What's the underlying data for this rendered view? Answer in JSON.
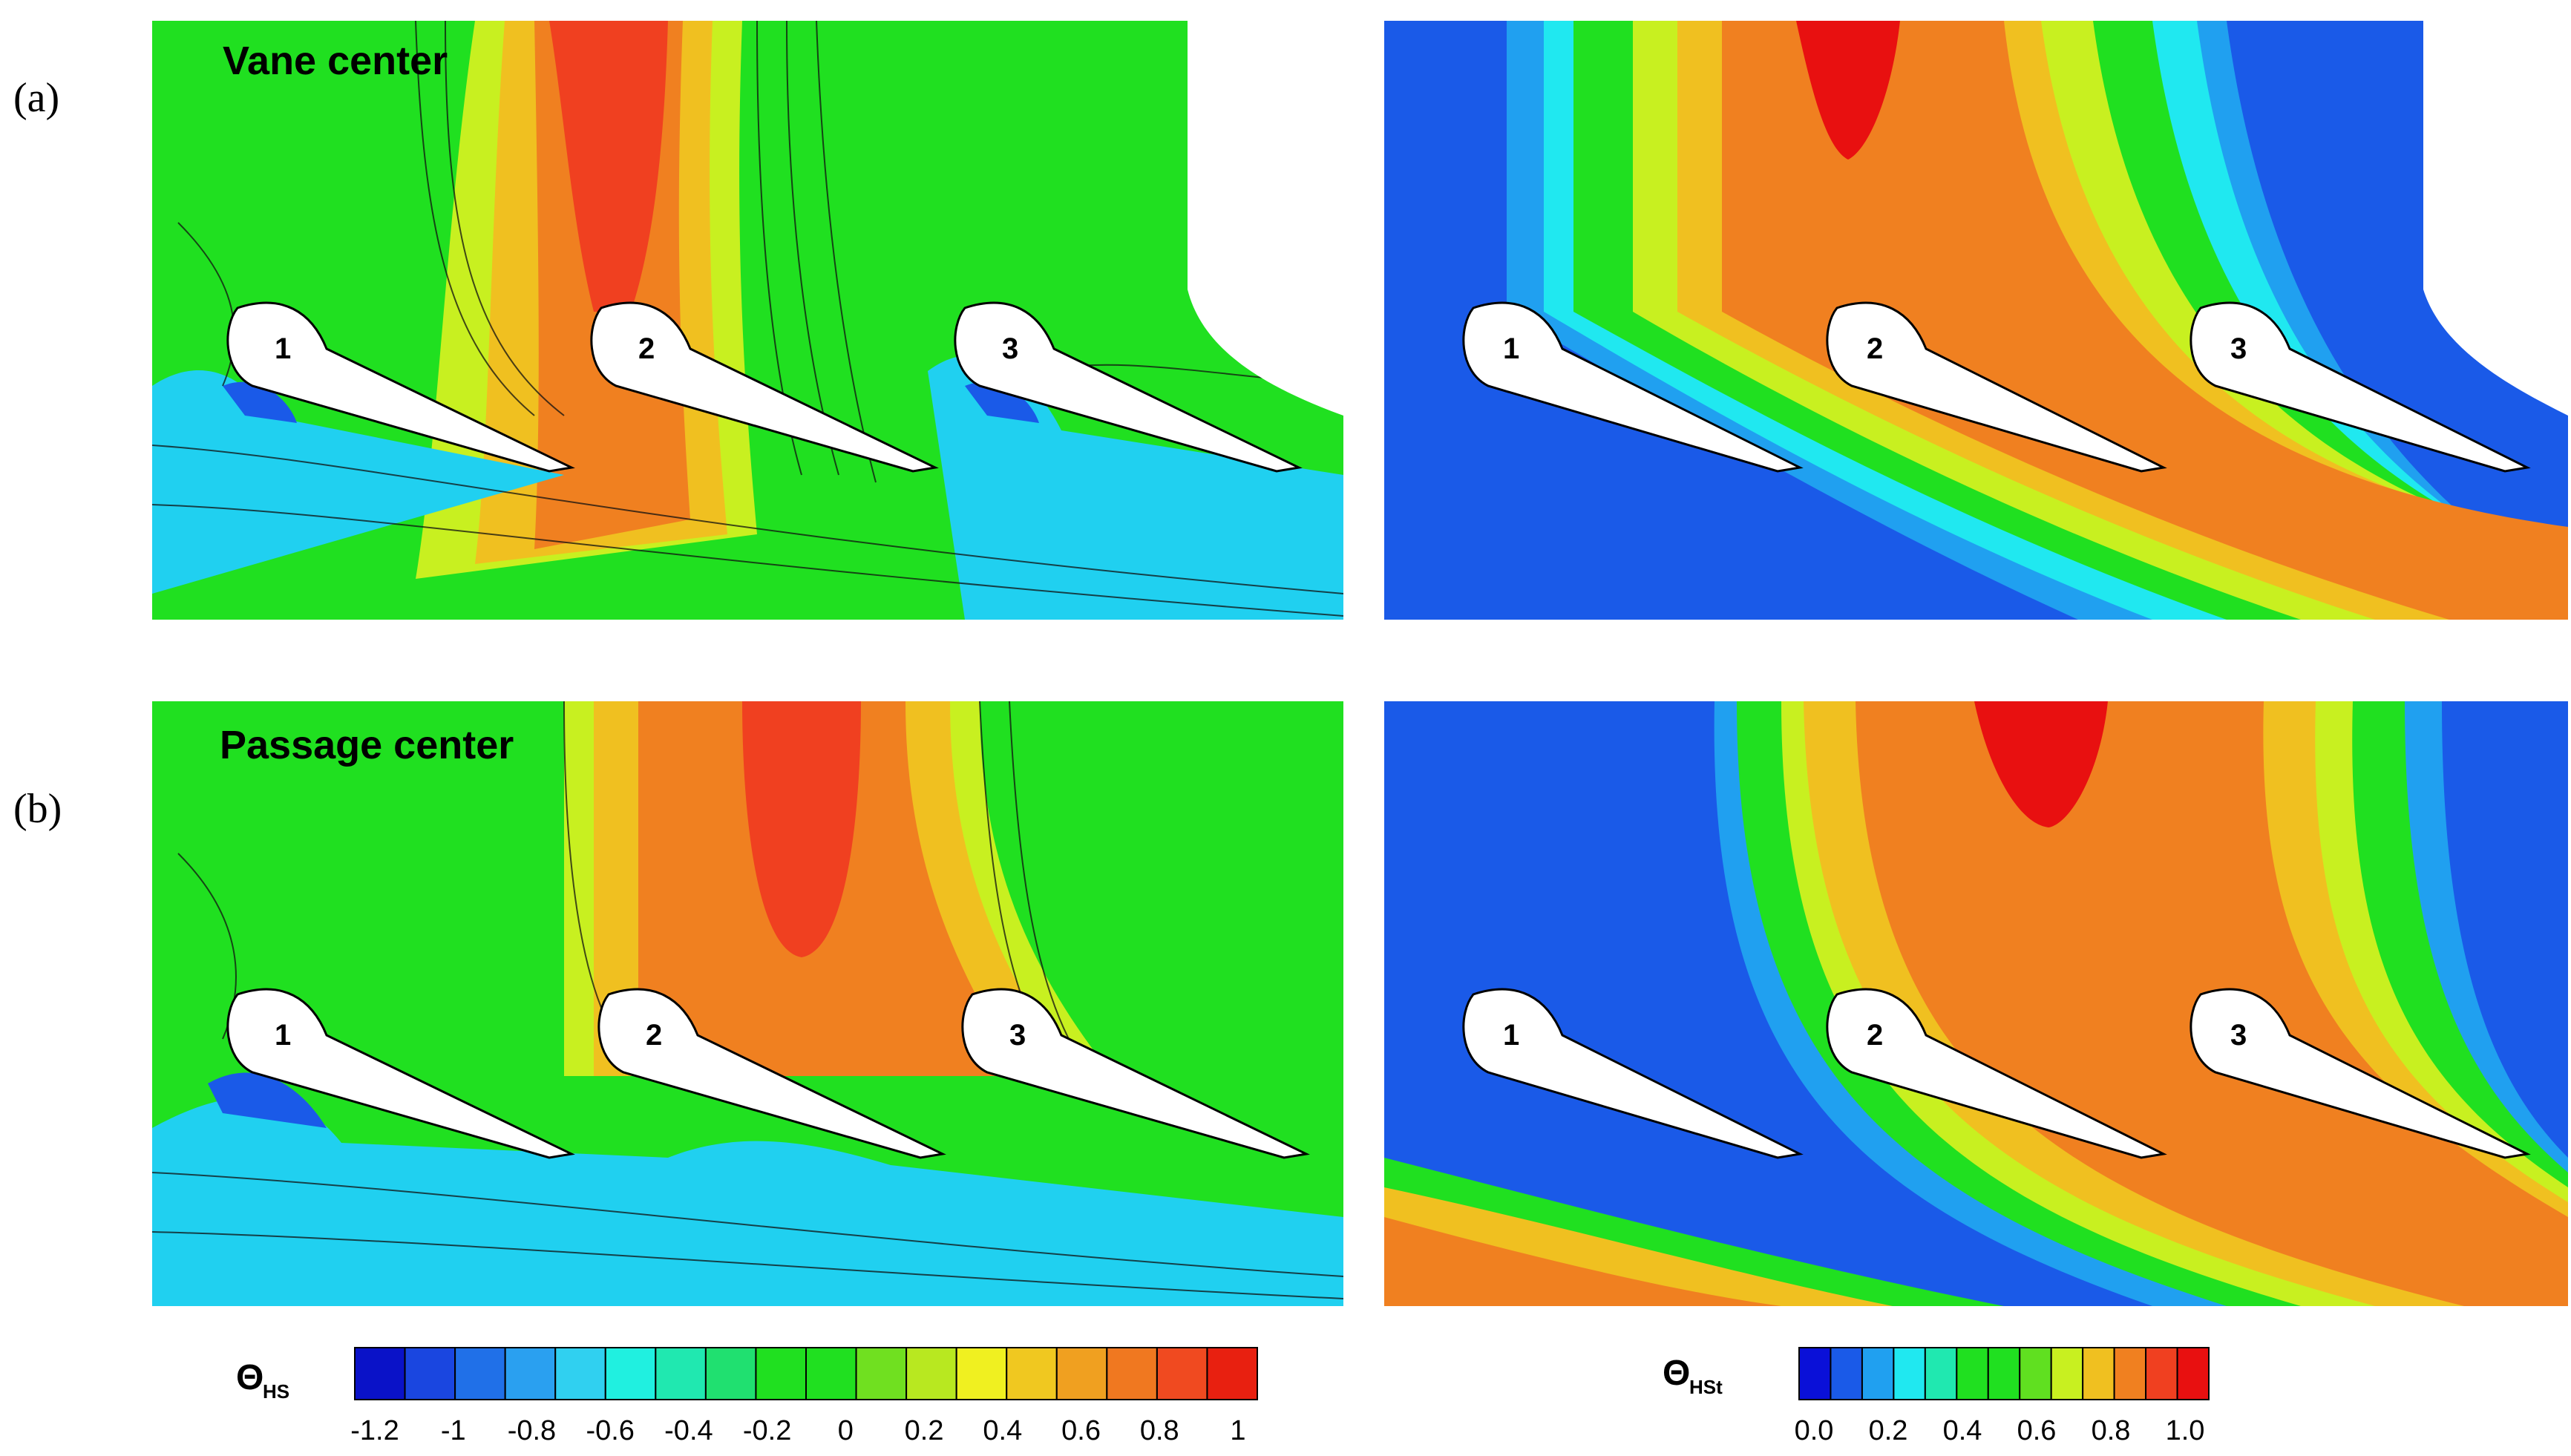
{
  "figure": {
    "row_a": {
      "label": "(a)",
      "title": "Vane center"
    },
    "row_b": {
      "label": "(b)",
      "title": "Passage center"
    },
    "vane_labels": [
      "1",
      "2",
      "3"
    ]
  },
  "colorbar_hs": {
    "symbol": "Θ",
    "subscript": "HS",
    "ticks": [
      "-1.2",
      "-1",
      "-0.8",
      "-0.6",
      "-0.4",
      "-0.2",
      "0",
      "0.2",
      "0.4",
      "0.6",
      "0.8",
      "1"
    ],
    "colors": [
      "#0a12c8",
      "#1a46e0",
      "#2070e8",
      "#2aa0f0",
      "#30d0f0",
      "#20f0e0",
      "#20e8b0",
      "#20e070",
      "#20e020",
      "#20e020",
      "#70e020",
      "#b8e820",
      "#f0f020",
      "#f0c820",
      "#f0a020",
      "#f07820",
      "#f04a20",
      "#e82010"
    ]
  },
  "colorbar_hst": {
    "symbol": "Θ",
    "subscript": "HSt",
    "ticks": [
      "0.0",
      "0.2",
      "0.4",
      "0.6",
      "0.8",
      "1.0"
    ],
    "colors": [
      "#0a10d8",
      "#1a5ae8",
      "#20a0f0",
      "#20e8f0",
      "#20e8b0",
      "#20e020",
      "#20e020",
      "#60e020",
      "#c8f020",
      "#f0c020",
      "#f08020",
      "#f04020",
      "#e81010"
    ]
  }
}
